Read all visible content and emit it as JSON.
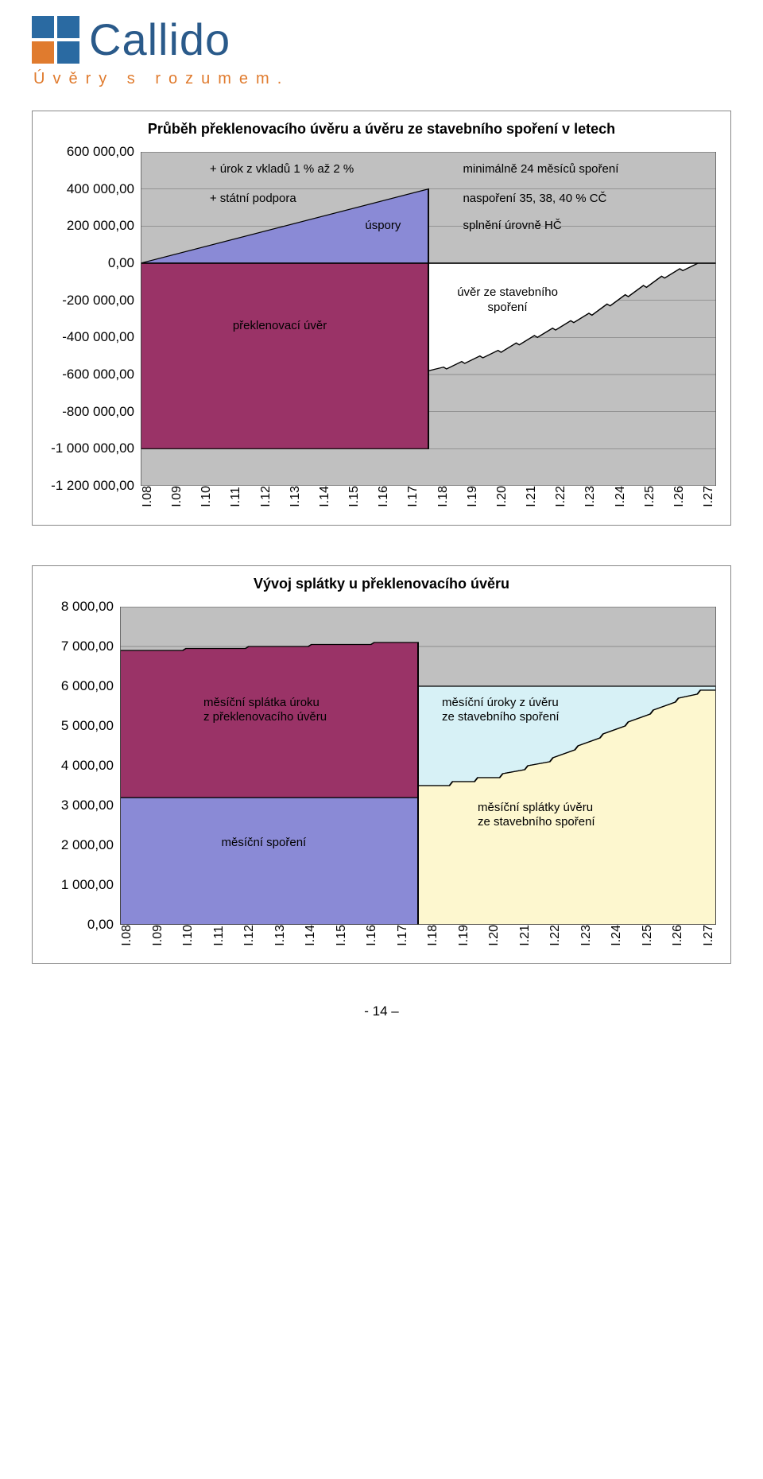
{
  "logo": {
    "name": "Callido",
    "tagline": "Úvěry s rozumem.",
    "square_colors": [
      "#2a6aa2",
      "#2a6aa2",
      "#e07b2e",
      "#2a6aa2"
    ]
  },
  "chart1": {
    "title": "Průběh překlenovacího úvěru a úvěru ze stavebního spoření v letech",
    "y": {
      "min": -1200000,
      "max": 600000,
      "step": 200000,
      "labels": [
        "600 000,00",
        "400 000,00",
        "200 000,00",
        "0,00",
        "-200 000,00",
        "-400 000,00",
        "-600 000,00",
        "-800 000,00",
        "-1 000 000,00",
        "-1 200 000,00"
      ]
    },
    "x_labels": [
      "I.08",
      "I.09",
      "I.10",
      "I.11",
      "I.12",
      "I.13",
      "I.14",
      "I.15",
      "I.16",
      "I.17",
      "I.18",
      "I.19",
      "I.20",
      "I.21",
      "I.22",
      "I.23",
      "I.24",
      "I.25",
      "I.26",
      "I.27"
    ],
    "plot_bg": "#c0c0c0",
    "zero_band_bg": "#ffffff",
    "colors": {
      "savings_fill": "#8a8ad6",
      "savings_stroke": "#000000",
      "bridge_fill": "#9a3367",
      "bridge_stroke": "#000000",
      "loan_area_fill": "#ffffff",
      "loan_area_stroke": "#000000"
    },
    "annotations": {
      "a1": "+ úrok z vkladů 1 % až 2 %",
      "a2": "+ státní podpora",
      "a3": "úspory",
      "a4": "minimálně 24 měsíců spoření",
      "a5": "naspoření 35, 38, 40 % CČ",
      "a6": "splnění úrovně HČ",
      "a7": "úvěr ze stavebního\nspoření",
      "a8": "překlenovací úvěr"
    }
  },
  "chart2": {
    "title": "Vývoj splátky u překlenovacího úvěru",
    "y": {
      "min": 0,
      "max": 8000,
      "step": 1000,
      "labels": [
        "8 000,00",
        "7 000,00",
        "6 000,00",
        "5 000,00",
        "4 000,00",
        "3 000,00",
        "2 000,00",
        "1 000,00",
        "0,00"
      ]
    },
    "x_labels": [
      "I.08",
      "I.09",
      "I.10",
      "I.11",
      "I.12",
      "I.13",
      "I.14",
      "I.15",
      "I.16",
      "I.17",
      "I.18",
      "I.19",
      "I.20",
      "I.21",
      "I.22",
      "I.23",
      "I.24",
      "I.25",
      "I.26",
      "I.27"
    ],
    "plot_bg": "#c0c0c0",
    "colors": {
      "upper_left_fill": "#9a3367",
      "lower_left_fill": "#8a8ad6",
      "right_interest_fill": "#d7f1f6",
      "right_principal_fill": "#fdf7cf",
      "stroke": "#000000"
    },
    "annotations": {
      "b1a": "měsíční splátka úroku",
      "b1b": "z překlenovacího úvěru",
      "b2a": "měsíční úroky z úvěru",
      "b2b": "ze stavebního spoření",
      "b3": "měsíční spoření",
      "b4a": "měsíční splátky úvěru",
      "b4b": "ze stavebního spoření"
    }
  },
  "page_number": "- 14 –"
}
